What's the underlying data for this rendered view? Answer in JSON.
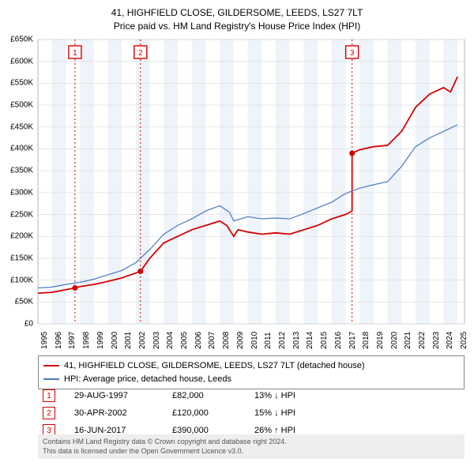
{
  "title_line1": "41, HIGHFIELD CLOSE, GILDERSOME, LEEDS, LS27 7LT",
  "title_line2": "Price paid vs. HM Land Registry's House Price Index (HPI)",
  "chart": {
    "type": "line",
    "background_color": "#ffffff",
    "grid_color": "#e0e0e0",
    "band_color": "#eef4fa",
    "xlim": [
      1995,
      2025.5
    ],
    "ylim": [
      0,
      650000
    ],
    "ytick_step": 50000,
    "yticks": [
      "£0",
      "£50K",
      "£100K",
      "£150K",
      "£200K",
      "£250K",
      "£300K",
      "£350K",
      "£400K",
      "£450K",
      "£500K",
      "£550K",
      "£600K",
      "£650K"
    ],
    "xticks": [
      "1995",
      "1996",
      "1997",
      "1998",
      "1999",
      "2000",
      "2001",
      "2002",
      "2003",
      "2004",
      "2005",
      "2006",
      "2007",
      "2008",
      "2009",
      "2010",
      "2011",
      "2012",
      "2013",
      "2014",
      "2015",
      "2016",
      "2017",
      "2018",
      "2019",
      "2020",
      "2021",
      "2022",
      "2023",
      "2024",
      "2025"
    ],
    "series": [
      {
        "name": "property",
        "label": "41, HIGHFIELD CLOSE, GILDERSOME, LEEDS, LS27 7LT (detached house)",
        "color": "#d40000",
        "line_width": 1.8,
        "points": [
          [
            1995,
            70000
          ],
          [
            1996,
            72000
          ],
          [
            1997,
            78000
          ],
          [
            1997.65,
            82000
          ],
          [
            1998,
            85000
          ],
          [
            1999,
            90000
          ],
          [
            2000,
            97000
          ],
          [
            2001,
            105000
          ],
          [
            2002.33,
            120000
          ],
          [
            2003,
            150000
          ],
          [
            2004,
            185000
          ],
          [
            2005,
            200000
          ],
          [
            2006,
            215000
          ],
          [
            2007,
            225000
          ],
          [
            2008,
            235000
          ],
          [
            2008.5,
            225000
          ],
          [
            2009,
            200000
          ],
          [
            2009.3,
            215000
          ],
          [
            2010,
            210000
          ],
          [
            2011,
            205000
          ],
          [
            2012,
            208000
          ],
          [
            2013,
            205000
          ],
          [
            2014,
            215000
          ],
          [
            2015,
            225000
          ],
          [
            2016,
            240000
          ],
          [
            2017,
            250000
          ],
          [
            2017.46,
            258000
          ],
          [
            2017.46,
            390000
          ],
          [
            2018,
            398000
          ],
          [
            2019,
            405000
          ],
          [
            2020,
            408000
          ],
          [
            2021,
            440000
          ],
          [
            2022,
            495000
          ],
          [
            2023,
            525000
          ],
          [
            2024,
            540000
          ],
          [
            2024.5,
            530000
          ],
          [
            2025,
            565000
          ]
        ],
        "markers": [
          {
            "x": 1997.65,
            "y": 82000
          },
          {
            "x": 2002.33,
            "y": 120000
          },
          {
            "x": 2017.46,
            "y": 390000
          }
        ]
      },
      {
        "name": "hpi",
        "label": "HPI: Average price, detached house, Leeds",
        "color": "#4a78c4",
        "line_width": 1.2,
        "points": [
          [
            1995,
            82000
          ],
          [
            1996,
            84000
          ],
          [
            1997,
            90000
          ],
          [
            1998,
            95000
          ],
          [
            1999,
            102000
          ],
          [
            2000,
            112000
          ],
          [
            2001,
            122000
          ],
          [
            2002,
            140000
          ],
          [
            2003,
            170000
          ],
          [
            2004,
            205000
          ],
          [
            2005,
            225000
          ],
          [
            2006,
            240000
          ],
          [
            2007,
            258000
          ],
          [
            2008,
            270000
          ],
          [
            2008.7,
            255000
          ],
          [
            2009,
            235000
          ],
          [
            2010,
            245000
          ],
          [
            2011,
            240000
          ],
          [
            2012,
            242000
          ],
          [
            2013,
            240000
          ],
          [
            2014,
            252000
          ],
          [
            2015,
            265000
          ],
          [
            2016,
            278000
          ],
          [
            2017,
            298000
          ],
          [
            2018,
            310000
          ],
          [
            2019,
            318000
          ],
          [
            2020,
            325000
          ],
          [
            2021,
            360000
          ],
          [
            2022,
            405000
          ],
          [
            2023,
            425000
          ],
          [
            2024,
            440000
          ],
          [
            2025,
            455000
          ]
        ]
      }
    ],
    "event_lines": [
      {
        "num": "1",
        "x": 1997.65,
        "color": "#d40000"
      },
      {
        "num": "2",
        "x": 2002.33,
        "color": "#d40000"
      },
      {
        "num": "3",
        "x": 2017.46,
        "color": "#d40000"
      }
    ]
  },
  "legend": {
    "items": [
      {
        "color": "#d40000",
        "label": "41, HIGHFIELD CLOSE, GILDERSOME, LEEDS, LS27 7LT (detached house)"
      },
      {
        "color": "#4a78c4",
        "label": "HPI: Average price, detached house, Leeds"
      }
    ]
  },
  "events_table": [
    {
      "num": "1",
      "color": "#d40000",
      "date": "29-AUG-1997",
      "price": "£82,000",
      "diff": "13% ↓ HPI"
    },
    {
      "num": "2",
      "color": "#d40000",
      "date": "30-APR-2002",
      "price": "£120,000",
      "diff": "15% ↓ HPI"
    },
    {
      "num": "3",
      "color": "#d40000",
      "date": "16-JUN-2017",
      "price": "£390,000",
      "diff": "26% ↑ HPI"
    }
  ],
  "footer_line1": "Contains HM Land Registry data © Crown copyright and database right 2024.",
  "footer_line2": "This data is licensed under the Open Government Licence v3.0."
}
